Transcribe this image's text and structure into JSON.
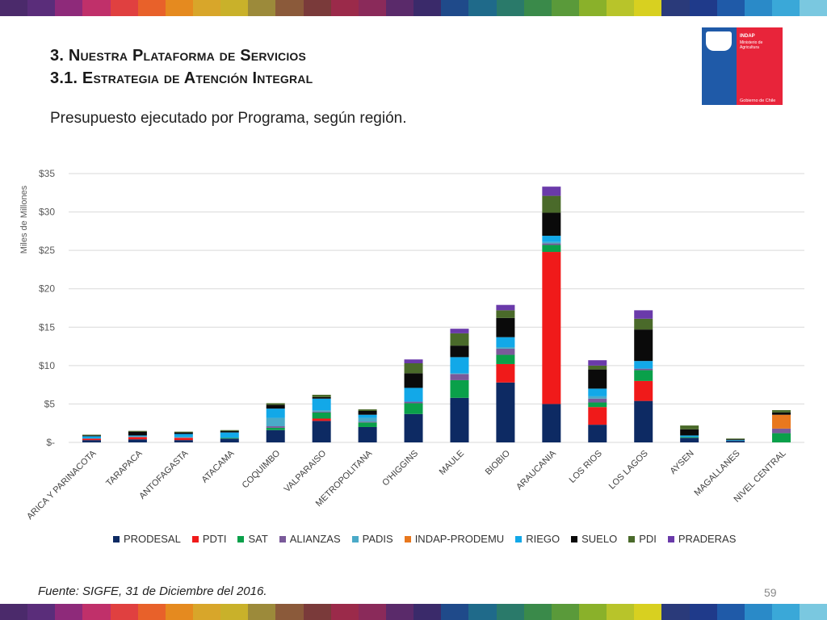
{
  "stripes": [
    "#4b2a6b",
    "#5a2d7a",
    "#8e2a7a",
    "#c0306a",
    "#e04040",
    "#e8612a",
    "#e58a1f",
    "#d8a62a",
    "#c9b12a",
    "#9c8a3a",
    "#8b5a3a",
    "#7a3a3a",
    "#9b2a4a",
    "#8a2a5a",
    "#5a2a6a",
    "#3a2a6a",
    "#1f4a8a",
    "#1f6a8a",
    "#2a7a6a",
    "#3a8a4a",
    "#5a9a3a",
    "#8ab12a",
    "#b8c42a",
    "#d8d020",
    "#2a3a7a",
    "#1f3a8a",
    "#1f5aa8",
    "#2a8ac8",
    "#3aa8d8",
    "#7ac8e0"
  ],
  "title": {
    "line1": "3. Nuestra Plataforma de Servicios",
    "line2": "3.1. Estrategia de Atención Integral"
  },
  "subtitle": "Presupuesto ejecutado por Programa, según región.",
  "logo": {
    "name": "INDAP",
    "sub": "Ministerio de Agricultura",
    "gov": "Gobierno de Chile"
  },
  "chart_data": {
    "type": "bar",
    "stacked": true,
    "ylabel": "Miles de Millones",
    "ylim": [
      0,
      35
    ],
    "yticks": [
      0,
      5,
      10,
      15,
      20,
      25,
      30,
      35
    ],
    "ytick_labels": [
      "$-",
      "$5",
      "$10",
      "$15",
      "$20",
      "$25",
      "$30",
      "$35"
    ],
    "grid": true,
    "legend_position": "bottom",
    "categories": [
      "ARICA Y PARINACOTA",
      "TARAPACA",
      "ANTOFAGASTA",
      "ATACAMA",
      "COQUIMBO",
      "VALPARAISO",
      "METROPOLITANA",
      "O'HIGGINS",
      "MAULE",
      "BIOBIO",
      "ARAUCANIA",
      "LOS RIOS",
      "LOS LAGOS",
      "AYSEN",
      "MAGALLANES",
      "NIVEL CENTRAL"
    ],
    "series": [
      {
        "name": "PRODESAL",
        "color": "#0d2a63",
        "values": [
          0.3,
          0.4,
          0.3,
          0.5,
          1.6,
          2.8,
          2.0,
          3.7,
          5.8,
          7.8,
          5.0,
          2.3,
          5.4,
          0.6,
          0.2,
          0.0
        ]
      },
      {
        "name": "PDTI",
        "color": "#f01a1a",
        "values": [
          0.2,
          0.3,
          0.3,
          0.0,
          0.0,
          0.3,
          0.0,
          0.0,
          0.0,
          2.4,
          19.8,
          2.3,
          2.6,
          0.0,
          0.0,
          0.0
        ]
      },
      {
        "name": "SAT",
        "color": "#0aa04a",
        "values": [
          0.0,
          0.0,
          0.0,
          0.1,
          0.3,
          0.8,
          0.6,
          1.4,
          2.3,
          1.2,
          0.9,
          0.6,
          1.4,
          0.1,
          0.0,
          1.2
        ]
      },
      {
        "name": "ALIANZAS",
        "color": "#7a5a9a",
        "values": [
          0.0,
          0.0,
          0.0,
          0.0,
          0.2,
          0.1,
          0.1,
          0.2,
          0.8,
          0.8,
          0.2,
          0.5,
          0.2,
          0.0,
          0.0,
          0.6
        ]
      },
      {
        "name": "PADIS",
        "color": "#4aaac8",
        "values": [
          0.0,
          0.1,
          0.1,
          0.0,
          1.1,
          0.2,
          0.5,
          0.0,
          0.1,
          0.2,
          0.2,
          0.3,
          0.0,
          0.0,
          0.0,
          0.0
        ]
      },
      {
        "name": "INDAP-PRODEMU",
        "color": "#e8781e",
        "values": [
          0.0,
          0.0,
          0.0,
          0.0,
          0.0,
          0.0,
          0.0,
          0.0,
          0.0,
          0.0,
          0.0,
          0.0,
          0.0,
          0.0,
          0.0,
          1.8
        ]
      },
      {
        "name": "RIEGO",
        "color": "#12a8e8",
        "values": [
          0.3,
          0.1,
          0.4,
          0.7,
          1.2,
          1.5,
          0.4,
          1.8,
          2.1,
          1.3,
          0.8,
          1.0,
          1.0,
          0.2,
          0.1,
          0.0
        ]
      },
      {
        "name": "SUELO",
        "color": "#0a0a0a",
        "values": [
          0.1,
          0.5,
          0.2,
          0.2,
          0.5,
          0.2,
          0.5,
          1.9,
          1.5,
          2.5,
          3.0,
          2.5,
          4.1,
          0.8,
          0.1,
          0.3
        ]
      },
      {
        "name": "PDI",
        "color": "#4a6a2a",
        "values": [
          0.1,
          0.1,
          0.1,
          0.1,
          0.2,
          0.3,
          0.2,
          1.3,
          1.6,
          1.0,
          2.2,
          0.5,
          1.4,
          0.5,
          0.1,
          0.3
        ]
      },
      {
        "name": "PRADERAS",
        "color": "#6a3aaa",
        "values": [
          0.0,
          0.0,
          0.0,
          0.0,
          0.0,
          0.0,
          0.0,
          0.5,
          0.6,
          0.7,
          1.2,
          0.7,
          1.1,
          0.0,
          0.0,
          0.0
        ]
      }
    ]
  },
  "footer": {
    "source": "Fuente: SIGFE, 31 de Diciembre del 2016.",
    "page": "59"
  }
}
